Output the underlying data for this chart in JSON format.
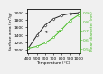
{
  "x": [
    400,
    500,
    600,
    700,
    800,
    900,
    1000
  ],
  "surface_area": [
    1050,
    1380,
    1660,
    1830,
    1920,
    1970,
    1990
  ],
  "mean_diameter": [
    0.51,
    0.53,
    0.57,
    0.63,
    0.72,
    0.82,
    0.88
  ],
  "surface_color": "#222222",
  "diameter_color": "#44bb22",
  "xlabel": "Temperature (°C)",
  "ylabel_left": "Surface area (m²/g)",
  "ylabel_right": "Mean diameter (nm)",
  "xlim": [
    380,
    1020
  ],
  "ylim_left": [
    900,
    2100
  ],
  "ylim_right": [
    0.45,
    0.95
  ],
  "xticks": [
    400,
    500,
    600,
    700,
    800,
    900,
    1000
  ],
  "yticks_left": [
    1000,
    1200,
    1400,
    1600,
    1800,
    2000
  ],
  "yticks_right": [
    0.5,
    0.6,
    0.7,
    0.8,
    0.9
  ],
  "background_color": "#f0f0f0",
  "fontsize": 3.2,
  "linewidth": 0.7,
  "marker_size": 1.5
}
